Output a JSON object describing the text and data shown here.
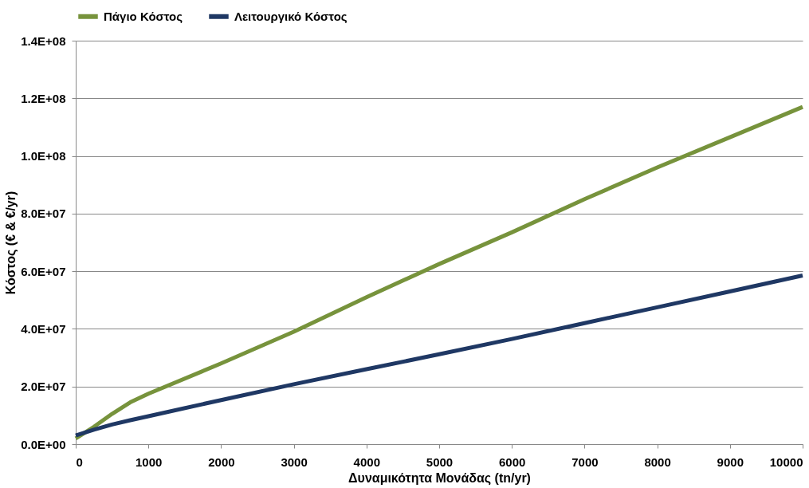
{
  "chart_data": {
    "type": "line",
    "xlabel": "Δυναμικότητα Μονάδας (tn/yr)",
    "ylabel": "Κόστος (€ & €/yr)",
    "x": [
      0,
      250,
      500,
      750,
      1000,
      2000,
      3000,
      4000,
      5000,
      6000,
      7000,
      8000,
      9000,
      10000
    ],
    "series": [
      {
        "name": "Πάγιο Κόστος",
        "color": "#77933c",
        "values": [
          2000000,
          6000000,
          10500000,
          14500000,
          17500000,
          28000000,
          39000000,
          51000000,
          62500000,
          73500000,
          85000000,
          96000000,
          106500000,
          117000000
        ]
      },
      {
        "name": "Λειτουργικό Κόστος",
        "color": "#1f3864",
        "values": [
          3000000,
          5000000,
          6800000,
          8300000,
          9700000,
          15300000,
          20800000,
          26000000,
          31200000,
          36500000,
          42000000,
          47500000,
          53000000,
          58500000
        ]
      }
    ],
    "xlim": [
      0,
      10000
    ],
    "xticks": [
      0,
      1000,
      2000,
      3000,
      4000,
      5000,
      6000,
      7000,
      8000,
      9000,
      10000
    ],
    "ylim": [
      0,
      140000000
    ],
    "yticks": [
      {
        "value": 0,
        "label": "0.0E+00"
      },
      {
        "value": 20000000,
        "label": "2.0E+07"
      },
      {
        "value": 40000000,
        "label": "4.0E+07"
      },
      {
        "value": 60000000,
        "label": "6.0E+07"
      },
      {
        "value": 80000000,
        "label": "8.0E+07"
      },
      {
        "value": 100000000,
        "label": "1.0E+08"
      },
      {
        "value": 120000000,
        "label": "1.2E+08"
      },
      {
        "value": 140000000,
        "label": "1.4E+08"
      }
    ],
    "grid": "y",
    "legend": "top",
    "marker": "none",
    "line_style": "solid"
  }
}
